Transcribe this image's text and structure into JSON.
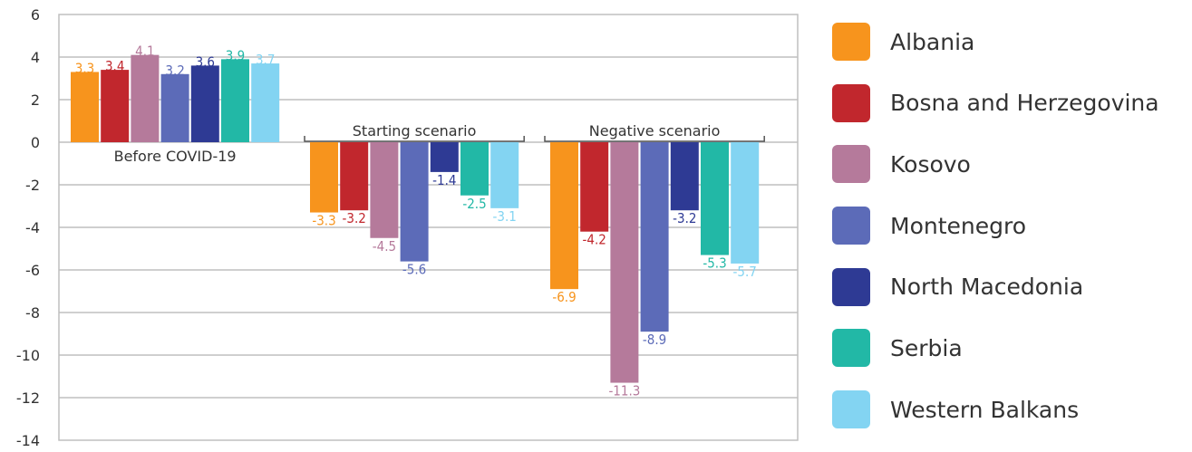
{
  "chart_data": {
    "type": "bar",
    "ylim": [
      -14,
      6
    ],
    "yticks": [
      6,
      4,
      2,
      0,
      -2,
      -4,
      -6,
      -8,
      -10,
      -12,
      -14
    ],
    "grid": true,
    "legend_position": "right",
    "groups": [
      "Before COVID-19",
      "Starting scenario",
      "Negative scenario"
    ],
    "series": [
      {
        "name": "Albania",
        "color": "#f7941d",
        "values": [
          3.3,
          -3.3,
          -6.9
        ]
      },
      {
        "name": "Bosna and Herzegovina",
        "color": "#c1272d",
        "values": [
          3.4,
          -3.2,
          -4.2
        ]
      },
      {
        "name": "Kosovo",
        "color": "#b57a9b",
        "values": [
          4.1,
          -4.5,
          -11.3
        ]
      },
      {
        "name": "Montenegro",
        "color": "#5c6bb8",
        "values": [
          3.2,
          -5.6,
          -8.9
        ]
      },
      {
        "name": "North Macedonia",
        "color": "#2e3a94",
        "values": [
          3.6,
          -1.4,
          -3.2
        ]
      },
      {
        "name": "Serbia",
        "color": "#22b8a6",
        "values": [
          3.9,
          -2.5,
          -5.3
        ]
      },
      {
        "name": "Western Balkans",
        "color": "#83d4f2",
        "values": [
          3.7,
          -3.1,
          -5.7
        ]
      }
    ]
  }
}
